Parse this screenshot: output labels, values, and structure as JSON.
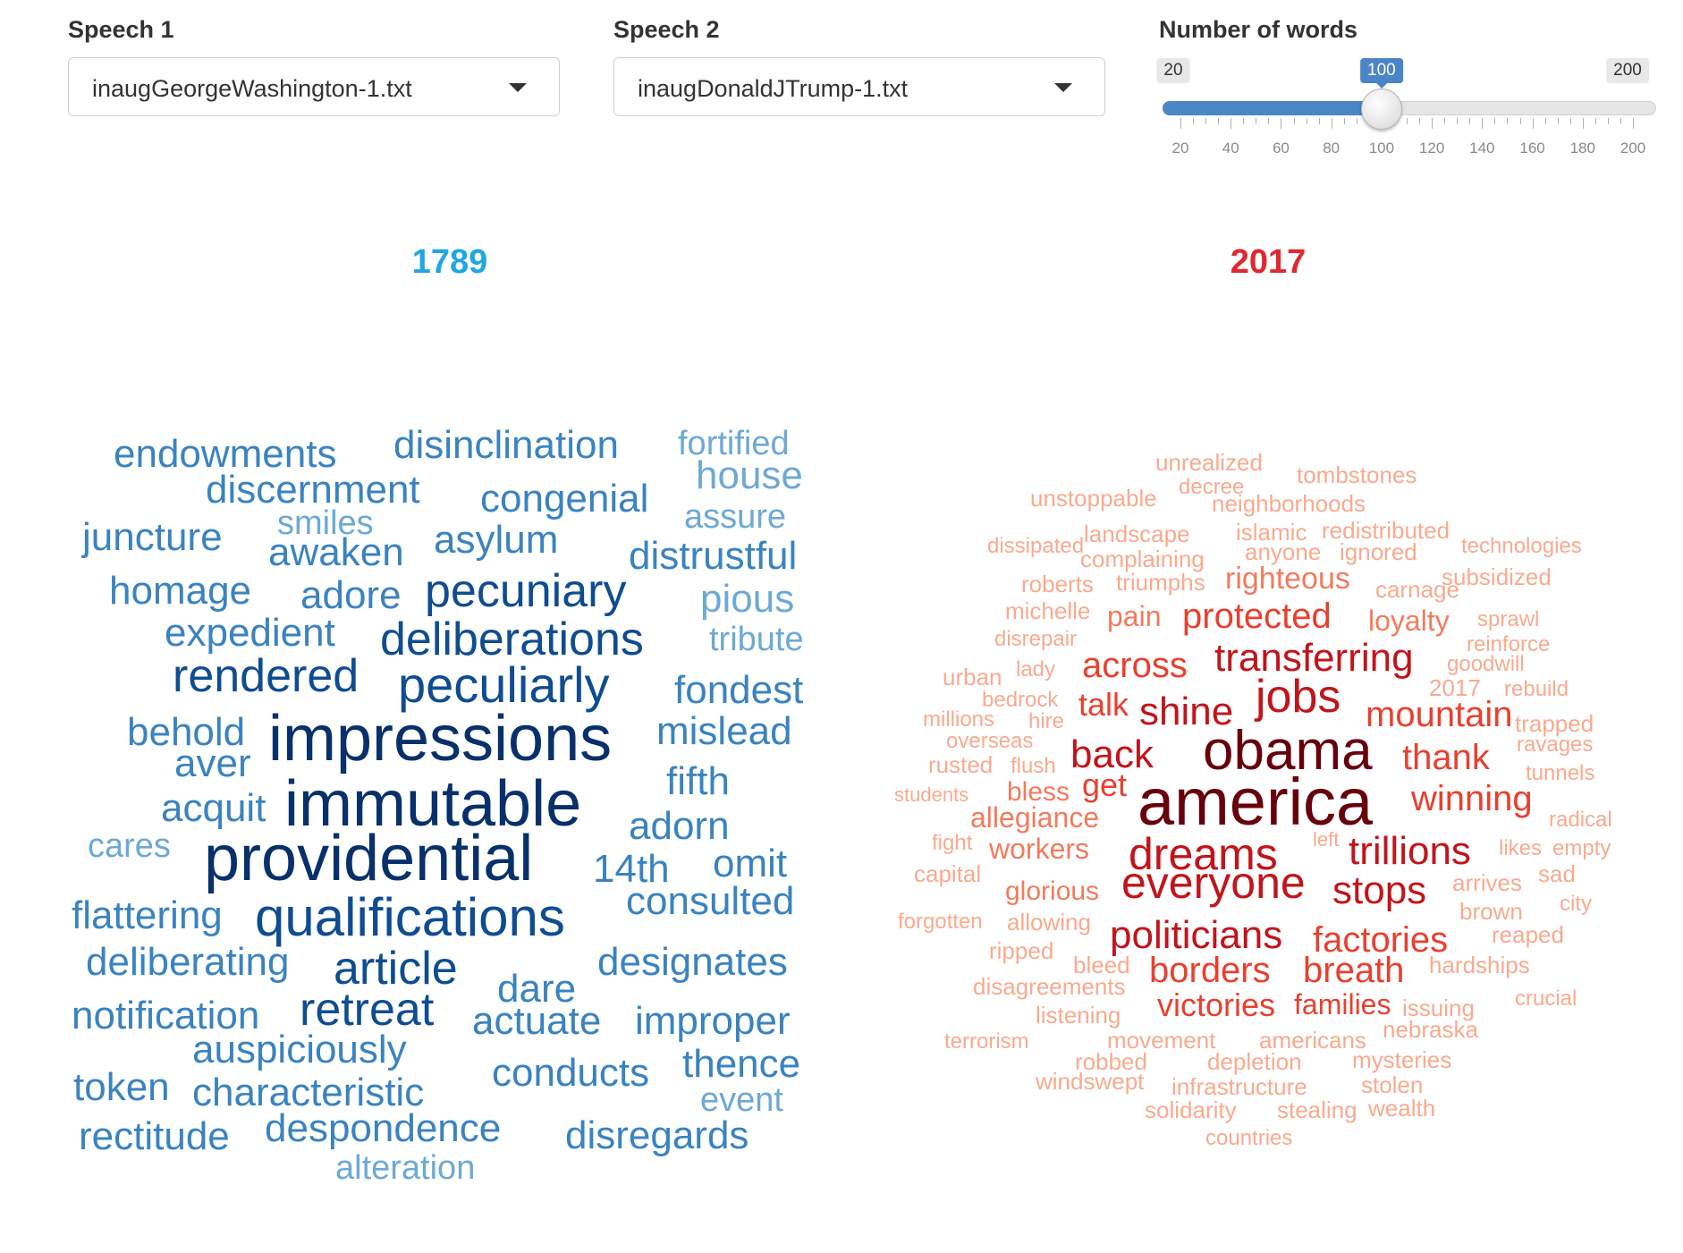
{
  "controls": {
    "speech1": {
      "label": "Speech 1",
      "value": "inaugGeorgeWashington-1.txt"
    },
    "speech2": {
      "label": "Speech 2",
      "value": "inaugDonaldJTrump-1.txt"
    },
    "num_words": {
      "label": "Number of words",
      "min": 20,
      "max": 200,
      "value": 100,
      "min_label": "20",
      "max_label": "200",
      "value_label": "100",
      "tick_labels": [
        "20",
        "40",
        "60",
        "80",
        "100",
        "120",
        "140",
        "160",
        "180",
        "200"
      ]
    }
  },
  "colors": {
    "year1": "#1fa7e0",
    "year2": "#e02830",
    "slider": "#4a86c6"
  },
  "clouds": [
    {
      "year": "1789",
      "palette": "blues",
      "words": [
        {
          "text": "impressions",
          "level": 1
        },
        {
          "text": "immutable",
          "level": 1
        },
        {
          "text": "providential",
          "level": 1
        },
        {
          "text": "qualifications",
          "level": 2
        },
        {
          "text": "peculiarly",
          "level": 2
        },
        {
          "text": "pecuniary",
          "level": 2
        },
        {
          "text": "deliberations",
          "level": 2
        },
        {
          "text": "rendered",
          "level": 2
        },
        {
          "text": "retreat",
          "level": 2
        },
        {
          "text": "article",
          "level": 2
        },
        {
          "text": "endowments",
          "level": 3
        },
        {
          "text": "disinclination",
          "level": 3
        },
        {
          "text": "discernment",
          "level": 3
        },
        {
          "text": "congenial",
          "level": 3
        },
        {
          "text": "juncture",
          "level": 3
        },
        {
          "text": "awaken",
          "level": 3
        },
        {
          "text": "asylum",
          "level": 3
        },
        {
          "text": "distrustful",
          "level": 3
        },
        {
          "text": "homage",
          "level": 3
        },
        {
          "text": "adore",
          "level": 3
        },
        {
          "text": "expedient",
          "level": 3
        },
        {
          "text": "fondest",
          "level": 3
        },
        {
          "text": "behold",
          "level": 3
        },
        {
          "text": "mislead",
          "level": 3
        },
        {
          "text": "aver",
          "level": 3
        },
        {
          "text": "fifth",
          "level": 3
        },
        {
          "text": "acquit",
          "level": 3
        },
        {
          "text": "adorn",
          "level": 3
        },
        {
          "text": "14th",
          "level": 3
        },
        {
          "text": "omit",
          "level": 3
        },
        {
          "text": "flattering",
          "level": 3
        },
        {
          "text": "consulted",
          "level": 3
        },
        {
          "text": "deliberating",
          "level": 3
        },
        {
          "text": "designates",
          "level": 3
        },
        {
          "text": "dare",
          "level": 3
        },
        {
          "text": "notification",
          "level": 3
        },
        {
          "text": "actuate",
          "level": 3
        },
        {
          "text": "improper",
          "level": 3
        },
        {
          "text": "auspiciously",
          "level": 3
        },
        {
          "text": "token",
          "level": 3
        },
        {
          "text": "characteristic",
          "level": 3
        },
        {
          "text": "conducts",
          "level": 3
        },
        {
          "text": "thence",
          "level": 3
        },
        {
          "text": "rectitude",
          "level": 3
        },
        {
          "text": "despondence",
          "level": 3
        },
        {
          "text": "disregards",
          "level": 3
        },
        {
          "text": "fortified",
          "level": 4
        },
        {
          "text": "house",
          "level": 4
        },
        {
          "text": "smiles",
          "level": 4
        },
        {
          "text": "assure",
          "level": 4
        },
        {
          "text": "pious",
          "level": 4
        },
        {
          "text": "tribute",
          "level": 4
        },
        {
          "text": "cares",
          "level": 4
        },
        {
          "text": "event",
          "level": 4
        },
        {
          "text": "alteration",
          "level": 4
        }
      ]
    },
    {
      "year": "2017",
      "palette": "reds",
      "words": [
        {
          "text": "america",
          "level": 1
        },
        {
          "text": "obama",
          "level": 1
        },
        {
          "text": "dreams",
          "level": 2
        },
        {
          "text": "everyone",
          "level": 2
        },
        {
          "text": "jobs",
          "level": 2
        },
        {
          "text": "transferring",
          "level": 2
        },
        {
          "text": "shine",
          "level": 2
        },
        {
          "text": "back",
          "level": 2
        },
        {
          "text": "trillions",
          "level": 2
        },
        {
          "text": "stops",
          "level": 2
        },
        {
          "text": "politicians",
          "level": 2
        },
        {
          "text": "protected",
          "level": 3
        },
        {
          "text": "across",
          "level": 3
        },
        {
          "text": "mountain",
          "level": 3
        },
        {
          "text": "thank",
          "level": 3
        },
        {
          "text": "winning",
          "level": 3
        },
        {
          "text": "factories",
          "level": 3
        },
        {
          "text": "borders",
          "level": 3
        },
        {
          "text": "breath",
          "level": 3
        },
        {
          "text": "victories",
          "level": 3
        },
        {
          "text": "families",
          "level": 3
        },
        {
          "text": "talk",
          "level": 3
        },
        {
          "text": "get",
          "level": 3
        },
        {
          "text": "righteous",
          "level": 4
        },
        {
          "text": "loyalty",
          "level": 4
        },
        {
          "text": "pain",
          "level": 4
        },
        {
          "text": "bless",
          "level": 4
        },
        {
          "text": "allegiance",
          "level": 4
        },
        {
          "text": "workers",
          "level": 4
        },
        {
          "text": "glorious",
          "level": 4
        },
        {
          "text": "unrealized",
          "level": 5
        },
        {
          "text": "tombstones",
          "level": 5
        },
        {
          "text": "decree",
          "level": 5
        },
        {
          "text": "unstoppable",
          "level": 5
        },
        {
          "text": "neighborhoods",
          "level": 5
        },
        {
          "text": "landscape",
          "level": 5
        },
        {
          "text": "islamic",
          "level": 5
        },
        {
          "text": "redistributed",
          "level": 5
        },
        {
          "text": "dissipated",
          "level": 5
        },
        {
          "text": "technologies",
          "level": 5
        },
        {
          "text": "complaining",
          "level": 5
        },
        {
          "text": "anyone",
          "level": 5
        },
        {
          "text": "ignored",
          "level": 5
        },
        {
          "text": "subsidized",
          "level": 5
        },
        {
          "text": "roberts",
          "level": 5
        },
        {
          "text": "triumphs",
          "level": 5
        },
        {
          "text": "carnage",
          "level": 5
        },
        {
          "text": "michelle",
          "level": 5
        },
        {
          "text": "sprawl",
          "level": 5
        },
        {
          "text": "disrepair",
          "level": 5
        },
        {
          "text": "reinforce",
          "level": 5
        },
        {
          "text": "goodwill",
          "level": 5
        },
        {
          "text": "urban",
          "level": 5
        },
        {
          "text": "lady",
          "level": 5
        },
        {
          "text": "2017",
          "level": 5
        },
        {
          "text": "rebuild",
          "level": 5
        },
        {
          "text": "bedrock",
          "level": 5
        },
        {
          "text": "millions",
          "level": 5
        },
        {
          "text": "hire",
          "level": 5
        },
        {
          "text": "trapped",
          "level": 5
        },
        {
          "text": "overseas",
          "level": 5
        },
        {
          "text": "ravages",
          "level": 5
        },
        {
          "text": "rusted",
          "level": 5
        },
        {
          "text": "flush",
          "level": 5
        },
        {
          "text": "tunnels",
          "level": 5
        },
        {
          "text": "students",
          "level": 5
        },
        {
          "text": "radical",
          "level": 5
        },
        {
          "text": "fight",
          "level": 5
        },
        {
          "text": "left",
          "level": 5
        },
        {
          "text": "likes",
          "level": 5
        },
        {
          "text": "empty",
          "level": 5
        },
        {
          "text": "capital",
          "level": 5
        },
        {
          "text": "arrives",
          "level": 5
        },
        {
          "text": "sad",
          "level": 5
        },
        {
          "text": "city",
          "level": 5
        },
        {
          "text": "brown",
          "level": 5
        },
        {
          "text": "forgotten",
          "level": 5
        },
        {
          "text": "allowing",
          "level": 5
        },
        {
          "text": "reaped",
          "level": 5
        },
        {
          "text": "ripped",
          "level": 5
        },
        {
          "text": "bleed",
          "level": 5
        },
        {
          "text": "hardships",
          "level": 5
        },
        {
          "text": "disagreements",
          "level": 5
        },
        {
          "text": "issuing",
          "level": 5
        },
        {
          "text": "crucial",
          "level": 5
        },
        {
          "text": "listening",
          "level": 5
        },
        {
          "text": "terrorism",
          "level": 5
        },
        {
          "text": "movement",
          "level": 5
        },
        {
          "text": "americans",
          "level": 5
        },
        {
          "text": "nebraska",
          "level": 5
        },
        {
          "text": "robbed",
          "level": 5
        },
        {
          "text": "depletion",
          "level": 5
        },
        {
          "text": "mysteries",
          "level": 5
        },
        {
          "text": "windswept",
          "level": 5
        },
        {
          "text": "infrastructure",
          "level": 5
        },
        {
          "text": "stolen",
          "level": 5
        },
        {
          "text": "solidarity",
          "level": 5
        },
        {
          "text": "stealing",
          "level": 5
        },
        {
          "text": "wealth",
          "level": 5
        },
        {
          "text": "countries",
          "level": 5
        }
      ]
    }
  ]
}
